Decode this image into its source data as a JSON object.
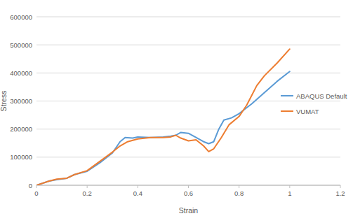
{
  "chart_data": {
    "type": "line",
    "x_label": "Strain",
    "y_label": "Stress",
    "xlim": [
      0,
      1.2
    ],
    "xticks": [
      0,
      0.2,
      0.4,
      0.6,
      0.8,
      1,
      1.2
    ],
    "ylim": [
      0,
      600000
    ],
    "yticks": [
      0,
      100000,
      200000,
      300000,
      400000,
      500000,
      600000
    ],
    "grid": true,
    "legend": "right",
    "series": [
      {
        "name": "ABAQUS Default",
        "color": "#5b9bd5",
        "x": [
          0,
          0.05,
          0.08,
          0.12,
          0.15,
          0.2,
          0.25,
          0.3,
          0.33,
          0.35,
          0.38,
          0.4,
          0.45,
          0.5,
          0.53,
          0.55,
          0.57,
          0.6,
          0.63,
          0.66,
          0.68,
          0.7,
          0.72,
          0.74,
          0.77,
          0.8,
          0.85,
          0.9,
          0.95,
          1
        ],
        "values": [
          0,
          15000,
          20000,
          25000,
          38000,
          50000,
          80000,
          115000,
          155000,
          170000,
          168000,
          172000,
          170000,
          172000,
          175000,
          178000,
          188000,
          185000,
          170000,
          155000,
          148000,
          155000,
          200000,
          232000,
          240000,
          255000,
          290000,
          330000,
          370000,
          405000
        ]
      },
      {
        "name": "VUMAT",
        "color": "#ed7d31",
        "x": [
          0,
          0.05,
          0.08,
          0.12,
          0.15,
          0.2,
          0.25,
          0.3,
          0.33,
          0.36,
          0.4,
          0.45,
          0.5,
          0.53,
          0.55,
          0.57,
          0.6,
          0.63,
          0.66,
          0.68,
          0.7,
          0.73,
          0.76,
          0.8,
          0.83,
          0.87,
          0.9,
          0.95,
          1
        ],
        "values": [
          0,
          15000,
          22000,
          25000,
          38000,
          52000,
          85000,
          118000,
          140000,
          155000,
          165000,
          170000,
          170000,
          172000,
          178000,
          168000,
          158000,
          162000,
          140000,
          120000,
          130000,
          170000,
          215000,
          245000,
          285000,
          355000,
          390000,
          435000,
          485000
        ]
      }
    ]
  }
}
